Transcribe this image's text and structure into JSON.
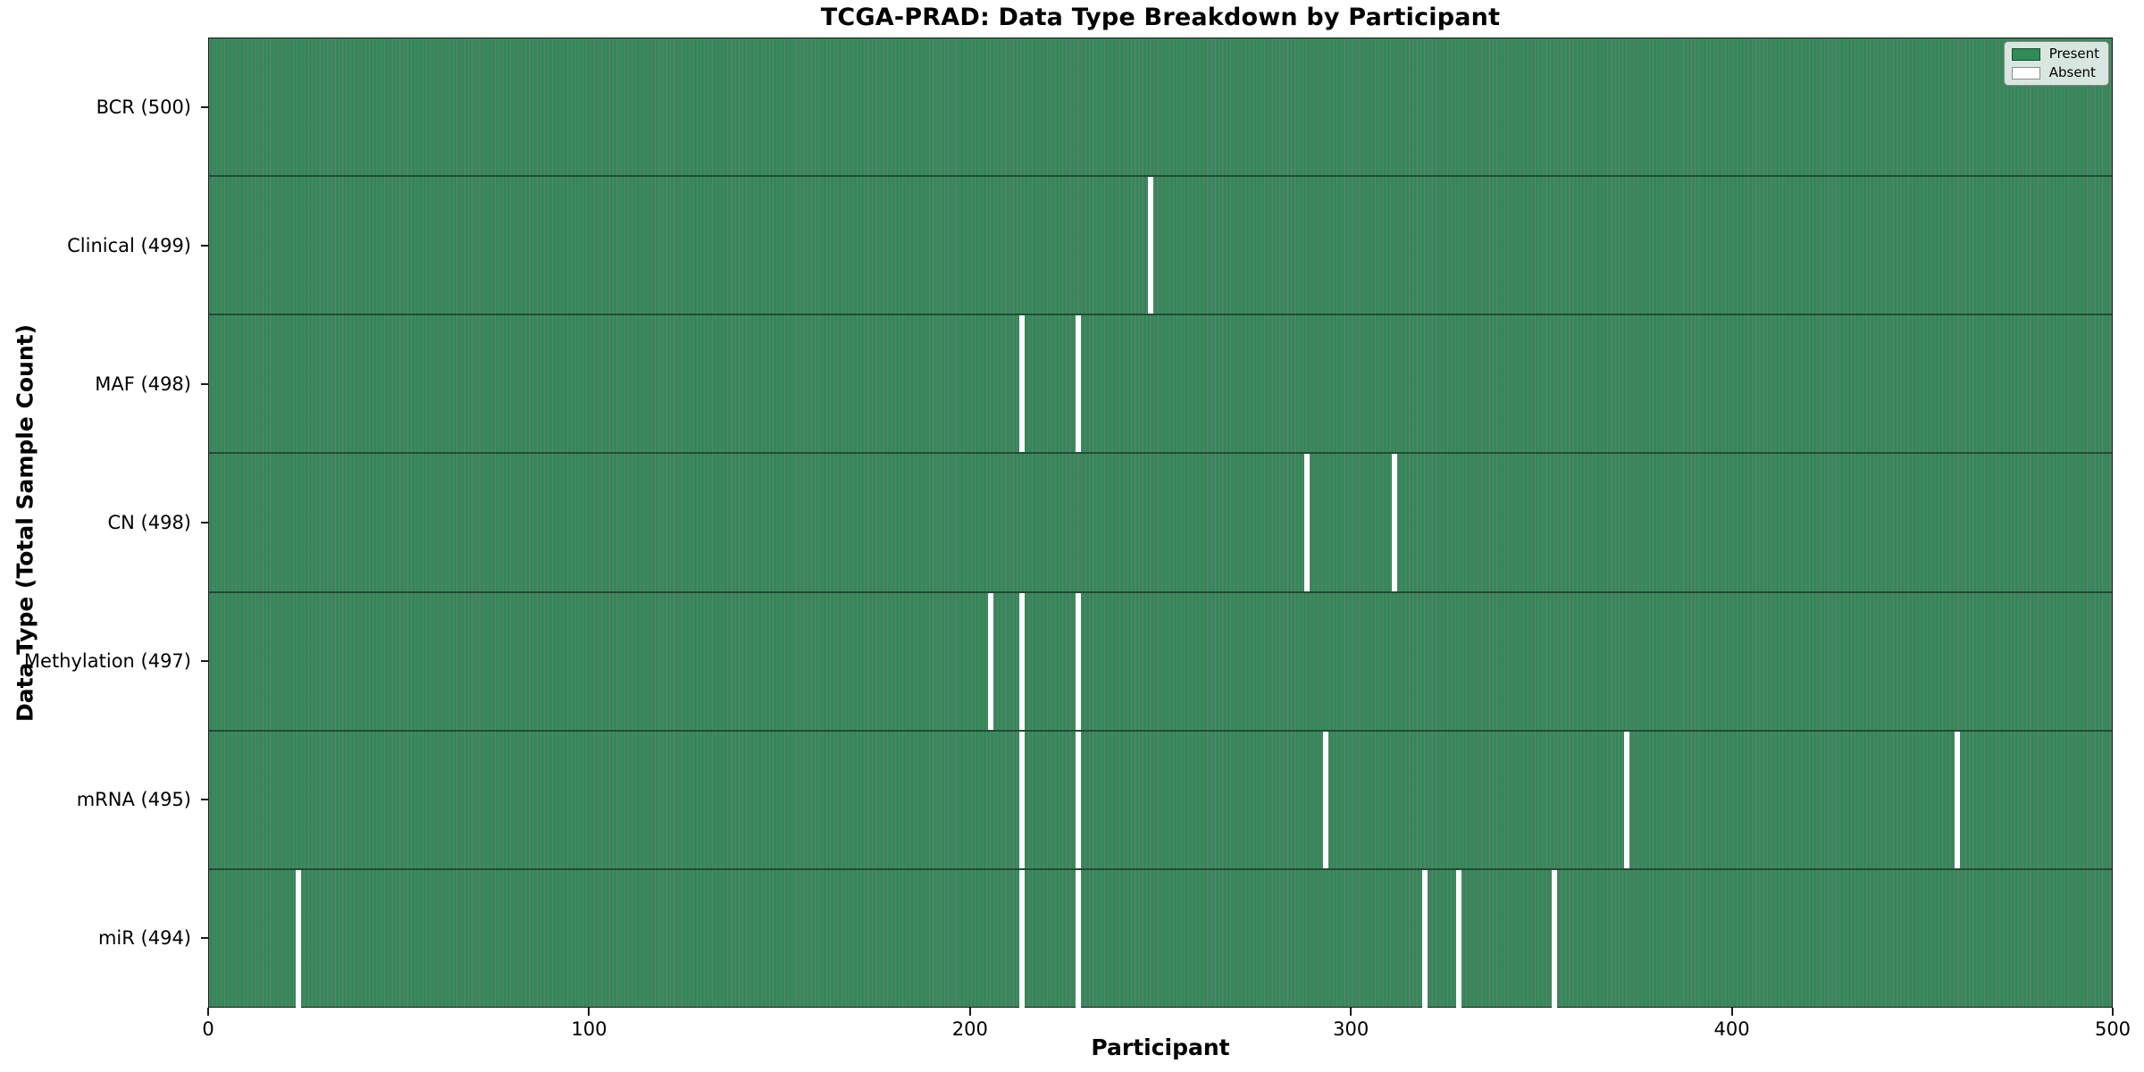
{
  "title": "TCGA-PRAD: Data Type Breakdown by Participant",
  "axes": {
    "xlabel": "Participant",
    "ylabel": "Data Type (Total Sample Count)"
  },
  "legend": {
    "present_label": "Present",
    "absent_label": "Absent"
  },
  "colors": {
    "present": "#2f8b57",
    "absent": "#ffffff",
    "bar_edge": "rgba(8,40,24,0.62)"
  },
  "chart_data": {
    "type": "heatmap",
    "title": "TCGA-PRAD: Data Type Breakdown by Participant",
    "xlabel": "Participant",
    "ylabel": "Data Type (Total Sample Count)",
    "x_range": [
      0,
      500
    ],
    "x_ticks": [
      0,
      100,
      200,
      300,
      400,
      500
    ],
    "n_participants": 500,
    "grid": false,
    "legend_position": "upper right",
    "legend_entries": [
      "Present",
      "Absent"
    ],
    "rows": [
      {
        "label": "BCR (500)",
        "data_type": "BCR",
        "total": 500,
        "absent_participants": []
      },
      {
        "label": "Clinical (499)",
        "data_type": "Clinical",
        "total": 499,
        "absent_participants": [
          247
        ]
      },
      {
        "label": "MAF (498)",
        "data_type": "MAF",
        "total": 498,
        "absent_participants": [
          213,
          228
        ]
      },
      {
        "label": "CN (498)",
        "data_type": "CN",
        "total": 498,
        "absent_participants": [
          288,
          311
        ]
      },
      {
        "label": "Methylation (497)",
        "data_type": "Methylation",
        "total": 497,
        "absent_participants": [
          205,
          213,
          228
        ]
      },
      {
        "label": "mRNA (495)",
        "data_type": "mRNA",
        "total": 495,
        "absent_participants": [
          213,
          228,
          293,
          372,
          459
        ]
      },
      {
        "label": "miR (494)",
        "data_type": "miR",
        "total": 494,
        "absent_participants": [
          23,
          213,
          228,
          319,
          328,
          353
        ]
      }
    ]
  }
}
